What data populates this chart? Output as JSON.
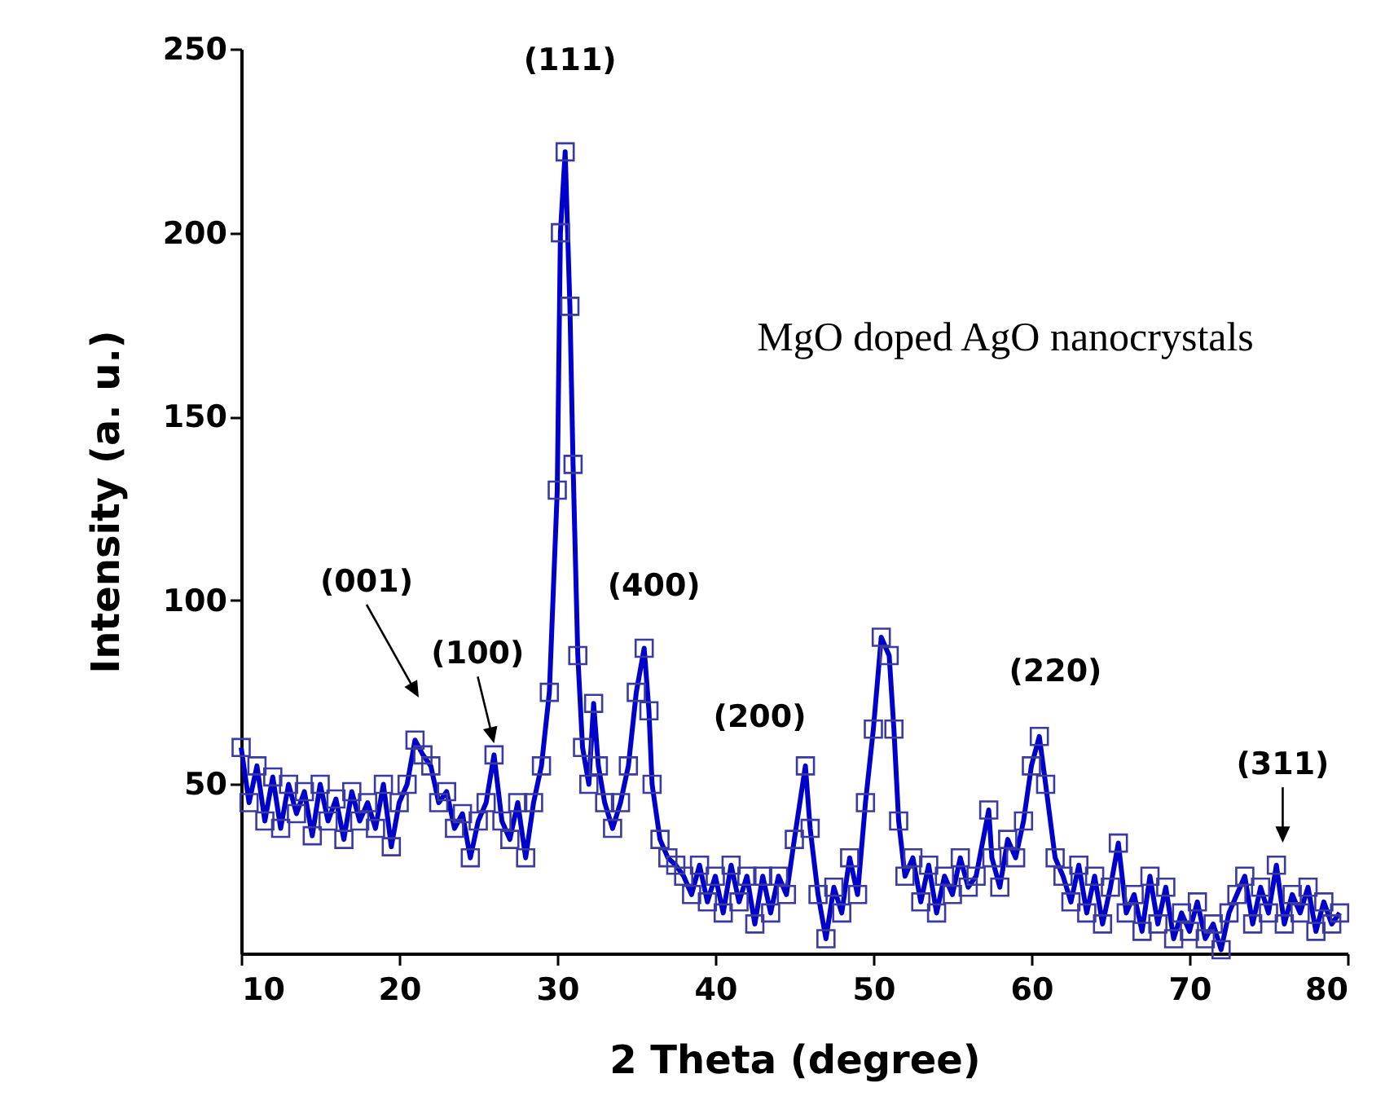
{
  "chart_data": {
    "type": "line",
    "xlabel": "2 Theta (degree)",
    "ylabel": "Intensity (a. u.)",
    "x": [
      10,
      10.5,
      11,
      11.5,
      12,
      12.5,
      13,
      13.5,
      14,
      14.5,
      15,
      15.5,
      16,
      16.5,
      17,
      17.5,
      18,
      18.5,
      19,
      19.5,
      20,
      20.5,
      21,
      21.5,
      22,
      22.5,
      23,
      23.5,
      24,
      24.5,
      25,
      25.5,
      26,
      26.5,
      27,
      27.5,
      28,
      28.5,
      29,
      29.5,
      30,
      30.2,
      30.5,
      30.8,
      31,
      31.3,
      31.6,
      32,
      32.3,
      32.6,
      33,
      33.5,
      34,
      34.5,
      35,
      35.5,
      35.8,
      36,
      36.5,
      37,
      37.5,
      38,
      38.5,
      39,
      39.5,
      40,
      40.5,
      41,
      41.5,
      42,
      42.5,
      43,
      43.5,
      44,
      44.5,
      45,
      45.7,
      46,
      46.5,
      47,
      47.5,
      48,
      48.5,
      49,
      49.5,
      50,
      50.5,
      51,
      51.3,
      51.6,
      52,
      52.5,
      53,
      53.5,
      54,
      54.5,
      55,
      55.5,
      56,
      56.5,
      57.3,
      57.5,
      58,
      58.5,
      59,
      59.5,
      60,
      60.5,
      60.9,
      61.5,
      62,
      62.5,
      63,
      63.5,
      64,
      64.5,
      65,
      65.5,
      66,
      66.5,
      67,
      67.5,
      68,
      68.5,
      69,
      69.5,
      70,
      70.5,
      71,
      71.5,
      72,
      72.5,
      73,
      73.5,
      74,
      74.5,
      75,
      75.5,
      76,
      76.5,
      77,
      77.5,
      78,
      78.5,
      79,
      79.5
    ],
    "series": [
      {
        "color": "#0000cc",
        "values": [
          60,
          45,
          55,
          40,
          52,
          38,
          50,
          42,
          48,
          36,
          50,
          40,
          46,
          35,
          48,
          40,
          45,
          38,
          50,
          33,
          45,
          50,
          62,
          58,
          55,
          45,
          48,
          38,
          42,
          30,
          40,
          45,
          58,
          40,
          35,
          45,
          30,
          45,
          55,
          75,
          130,
          200,
          222,
          180,
          137,
          85,
          60,
          50,
          72,
          55,
          45,
          38,
          45,
          55,
          75,
          87,
          70,
          50,
          35,
          30,
          28,
          25,
          20,
          28,
          18,
          25,
          15,
          28,
          18,
          25,
          12,
          25,
          15,
          25,
          20,
          35,
          55,
          38,
          20,
          8,
          22,
          15,
          30,
          20,
          45,
          65,
          90,
          85,
          65,
          40,
          25,
          30,
          18,
          28,
          15,
          25,
          20,
          30,
          22,
          25,
          43,
          30,
          22,
          35,
          30,
          40,
          55,
          63,
          50,
          30,
          25,
          18,
          28,
          15,
          25,
          12,
          22,
          34,
          15,
          20,
          10,
          25,
          12,
          22,
          8,
          15,
          10,
          18,
          8,
          12,
          5,
          15,
          20,
          25,
          12,
          22,
          15,
          28,
          12,
          20,
          15,
          22,
          10,
          18,
          12,
          15
        ]
      }
    ],
    "xlim": [
      10,
      80
    ],
    "xticks": [
      10,
      20,
      30,
      40,
      50,
      60,
      70,
      80
    ],
    "ylim": [
      4,
      250
    ],
    "yticks": [
      50,
      100,
      150,
      200,
      250
    ],
    "grid": false,
    "marker": "square",
    "line_style": "solid",
    "annotations": [
      "(001)",
      {
        "text": "(100)",
        "x": 26,
        "y": 58
      },
      {
        "text": "(111)",
        "x": 30.5,
        "y": 222
      },
      {
        "text": "(400)",
        "x": 35.5,
        "y": 87
      },
      {
        "text": "(200)",
        "x": 45.7,
        "y": 55
      },
      {
        "text": "(220)",
        "x": 60.9,
        "y": 63
      },
      {
        "text": "(311)",
        "x": 75.9,
        "y": 31
      },
      "MgO doped AgO nanocrystals"
    ]
  }
}
